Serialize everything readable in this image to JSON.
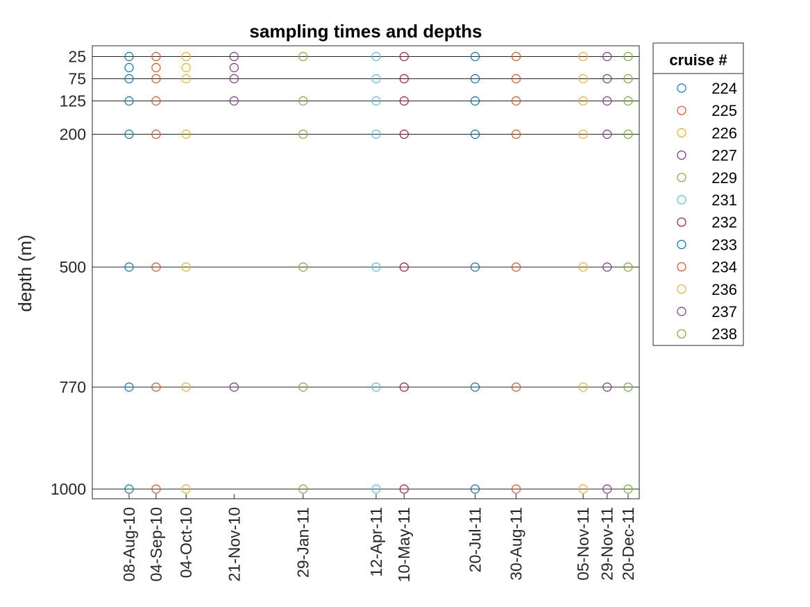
{
  "chart_data": {
    "type": "scatter",
    "title": "sampling times and depths",
    "ylabel": "depth (m)",
    "xlabel": "",
    "y_reversed": true,
    "y_ticks": [
      25,
      75,
      125,
      200,
      500,
      770,
      1000
    ],
    "grid": "horizontal lines at standard depths",
    "legend": {
      "title": "cruise #",
      "placement": "right"
    },
    "x_ticks": [
      "08-Aug-10",
      "04-Sep-10",
      "04-Oct-10",
      "21-Nov-10",
      "29-Jan-11",
      "12-Apr-11",
      "10-May-11",
      "20-Jul-11",
      "30-Aug-11",
      "05-Nov-11",
      "29-Nov-11",
      "20-Dec-11"
    ],
    "series": [
      {
        "name": "224",
        "color": "#0072BD",
        "date": "2010-08-08",
        "depths": [
          25,
          50,
          75,
          125,
          200,
          500,
          770,
          1000
        ]
      },
      {
        "name": "225",
        "color": "#D95319",
        "date": "2010-09-04",
        "depths": [
          25,
          50,
          75,
          125,
          200,
          500,
          770,
          1000
        ]
      },
      {
        "name": "226",
        "color": "#EDB120",
        "date": "2010-10-04",
        "depths": [
          25,
          50,
          75,
          200,
          500,
          770,
          1000
        ]
      },
      {
        "name": "227",
        "color": "#7E2F8E",
        "date": "2010-11-21",
        "depths": [
          25,
          50,
          75,
          125,
          770
        ]
      },
      {
        "name": "229",
        "color": "#77AC30",
        "date": "2011-01-29",
        "depths": [
          25,
          125,
          200,
          500,
          770,
          1000
        ]
      },
      {
        "name": "231",
        "color": "#4DBEEE",
        "date": "2011-04-12",
        "depths": [
          25,
          75,
          125,
          200,
          500,
          770,
          1000
        ]
      },
      {
        "name": "232",
        "color": "#A2142F",
        "date": "2011-05-10",
        "depths": [
          25,
          75,
          125,
          200,
          500,
          770,
          1000
        ]
      },
      {
        "name": "233",
        "color": "#0072BD",
        "date": "2011-07-20",
        "depths": [
          25,
          75,
          125,
          200,
          500,
          770,
          1000
        ]
      },
      {
        "name": "234",
        "color": "#D95319",
        "date": "2011-08-30",
        "depths": [
          25,
          75,
          125,
          200,
          500,
          770,
          1000
        ]
      },
      {
        "name": "236",
        "color": "#EDB120",
        "date": "2011-11-05",
        "depths": [
          25,
          75,
          125,
          200,
          500,
          770,
          1000
        ]
      },
      {
        "name": "237",
        "color": "#7E2F8E",
        "date": "2011-11-29",
        "depths": [
          25,
          75,
          125,
          200,
          500,
          770,
          1000
        ]
      },
      {
        "name": "238",
        "color": "#77AC30",
        "date": "2011-12-20",
        "depths": [
          25,
          75,
          125,
          200,
          500,
          770,
          1000
        ]
      }
    ]
  }
}
